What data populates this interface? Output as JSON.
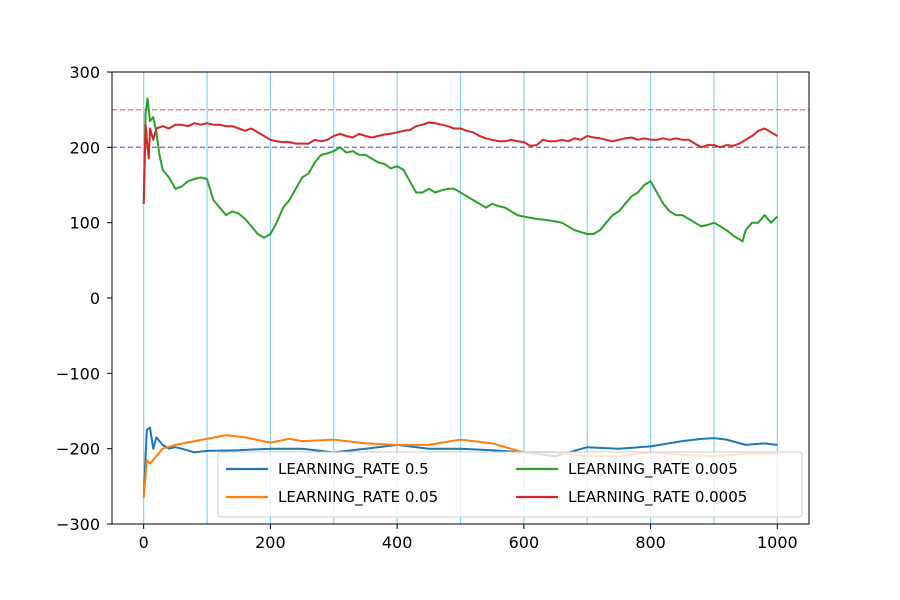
{
  "chart_data": {
    "type": "line",
    "title": "",
    "xlabel": "",
    "ylabel": "",
    "xlim": [
      -50,
      1050
    ],
    "ylim": [
      -300,
      300
    ],
    "x_ticks": [
      0,
      200,
      400,
      600,
      800,
      1000
    ],
    "x_tick_labels": [
      "0",
      "200",
      "400",
      "600",
      "800",
      "1000"
    ],
    "y_ticks": [
      -300,
      -200,
      -100,
      0,
      100,
      200,
      300
    ],
    "y_tick_labels": [
      "−300",
      "−200",
      "−100",
      "0",
      "100",
      "200",
      "300"
    ],
    "grid": false,
    "vertical_markers": {
      "x": [
        0,
        100,
        200,
        300,
        400,
        500,
        600,
        700,
        800,
        900,
        1000
      ],
      "color": "#87d3f8"
    },
    "horizontal_markers": [
      {
        "y": 250,
        "color": "#f08080",
        "style": "dashed"
      },
      {
        "y": 200,
        "color": "#7b7bbd",
        "style": "dashed"
      }
    ],
    "legend": {
      "placement": "lower-right",
      "columns": 2
    },
    "series": [
      {
        "name": "LEARNING_RATE 0.5",
        "color": "#1f77b4",
        "points": [
          [
            0,
            -265
          ],
          [
            5,
            -175
          ],
          [
            10,
            -172
          ],
          [
            15,
            -200
          ],
          [
            20,
            -185
          ],
          [
            30,
            -195
          ],
          [
            40,
            -200
          ],
          [
            50,
            -198
          ],
          [
            60,
            -200
          ],
          [
            80,
            -205
          ],
          [
            100,
            -203
          ],
          [
            150,
            -202
          ],
          [
            200,
            -200
          ],
          [
            250,
            -200
          ],
          [
            300,
            -205
          ],
          [
            350,
            -200
          ],
          [
            400,
            -195
          ],
          [
            450,
            -200
          ],
          [
            500,
            -200
          ],
          [
            550,
            -202
          ],
          [
            600,
            -205
          ],
          [
            650,
            -210
          ],
          [
            700,
            -198
          ],
          [
            750,
            -200
          ],
          [
            800,
            -197
          ],
          [
            850,
            -190
          ],
          [
            880,
            -187
          ],
          [
            900,
            -186
          ],
          [
            920,
            -188
          ],
          [
            950,
            -195
          ],
          [
            980,
            -193
          ],
          [
            1000,
            -195
          ]
        ]
      },
      {
        "name": "LEARNING_RATE 0.05",
        "color": "#ff7f0e",
        "points": [
          [
            0,
            -265
          ],
          [
            5,
            -215
          ],
          [
            10,
            -220
          ],
          [
            20,
            -210
          ],
          [
            30,
            -200
          ],
          [
            50,
            -195
          ],
          [
            80,
            -190
          ],
          [
            100,
            -187
          ],
          [
            130,
            -182
          ],
          [
            160,
            -185
          ],
          [
            200,
            -192
          ],
          [
            230,
            -187
          ],
          [
            250,
            -190
          ],
          [
            300,
            -188
          ],
          [
            350,
            -193
          ],
          [
            400,
            -195
          ],
          [
            450,
            -195
          ],
          [
            500,
            -188
          ],
          [
            550,
            -193
          ],
          [
            600,
            -205
          ],
          [
            650,
            -205
          ],
          [
            700,
            -210
          ],
          [
            750,
            -210
          ],
          [
            800,
            -205
          ],
          [
            850,
            -208
          ],
          [
            900,
            -210
          ],
          [
            950,
            -207
          ],
          [
            1000,
            -207
          ]
        ]
      },
      {
        "name": "LEARNING_RATE 0.005",
        "color": "#2ca02c",
        "points": [
          [
            0,
            125
          ],
          [
            3,
            245
          ],
          [
            6,
            265
          ],
          [
            10,
            235
          ],
          [
            15,
            240
          ],
          [
            20,
            220
          ],
          [
            25,
            190
          ],
          [
            30,
            170
          ],
          [
            40,
            160
          ],
          [
            50,
            145
          ],
          [
            60,
            148
          ],
          [
            70,
            155
          ],
          [
            80,
            158
          ],
          [
            90,
            160
          ],
          [
            100,
            158
          ],
          [
            110,
            130
          ],
          [
            120,
            120
          ],
          [
            130,
            110
          ],
          [
            140,
            115
          ],
          [
            150,
            112
          ],
          [
            160,
            105
          ],
          [
            170,
            95
          ],
          [
            180,
            85
          ],
          [
            190,
            80
          ],
          [
            200,
            85
          ],
          [
            210,
            100
          ],
          [
            220,
            120
          ],
          [
            230,
            130
          ],
          [
            240,
            145
          ],
          [
            250,
            160
          ],
          [
            260,
            165
          ],
          [
            270,
            180
          ],
          [
            280,
            190
          ],
          [
            290,
            192
          ],
          [
            300,
            195
          ],
          [
            310,
            200
          ],
          [
            320,
            193
          ],
          [
            330,
            195
          ],
          [
            340,
            190
          ],
          [
            350,
            190
          ],
          [
            360,
            185
          ],
          [
            370,
            180
          ],
          [
            380,
            178
          ],
          [
            390,
            172
          ],
          [
            400,
            175
          ],
          [
            410,
            170
          ],
          [
            420,
            155
          ],
          [
            430,
            140
          ],
          [
            440,
            140
          ],
          [
            450,
            145
          ],
          [
            460,
            140
          ],
          [
            470,
            143
          ],
          [
            480,
            145
          ],
          [
            490,
            145
          ],
          [
            500,
            140
          ],
          [
            510,
            135
          ],
          [
            520,
            130
          ],
          [
            530,
            125
          ],
          [
            540,
            120
          ],
          [
            550,
            125
          ],
          [
            560,
            122
          ],
          [
            570,
            120
          ],
          [
            580,
            115
          ],
          [
            590,
            110
          ],
          [
            600,
            108
          ],
          [
            620,
            105
          ],
          [
            640,
            103
          ],
          [
            660,
            100
          ],
          [
            680,
            90
          ],
          [
            700,
            85
          ],
          [
            710,
            85
          ],
          [
            720,
            90
          ],
          [
            730,
            100
          ],
          [
            740,
            110
          ],
          [
            750,
            115
          ],
          [
            760,
            125
          ],
          [
            770,
            135
          ],
          [
            780,
            140
          ],
          [
            790,
            150
          ],
          [
            800,
            155
          ],
          [
            810,
            140
          ],
          [
            820,
            125
          ],
          [
            830,
            115
          ],
          [
            840,
            110
          ],
          [
            850,
            110
          ],
          [
            860,
            105
          ],
          [
            870,
            100
          ],
          [
            880,
            95
          ],
          [
            890,
            97
          ],
          [
            900,
            100
          ],
          [
            910,
            95
          ],
          [
            920,
            90
          ],
          [
            930,
            83
          ],
          [
            940,
            78
          ],
          [
            945,
            75
          ],
          [
            950,
            90
          ],
          [
            960,
            100
          ],
          [
            970,
            100
          ],
          [
            980,
            110
          ],
          [
            990,
            100
          ],
          [
            1000,
            108
          ]
        ]
      },
      {
        "name": "LEARNING_RATE 0.0005",
        "color": "#d62728",
        "points": [
          [
            0,
            125
          ],
          [
            3,
            230
          ],
          [
            6,
            200
          ],
          [
            8,
            185
          ],
          [
            10,
            225
          ],
          [
            15,
            210
          ],
          [
            20,
            225
          ],
          [
            30,
            228
          ],
          [
            40,
            225
          ],
          [
            50,
            230
          ],
          [
            60,
            230
          ],
          [
            70,
            228
          ],
          [
            80,
            232
          ],
          [
            90,
            230
          ],
          [
            100,
            232
          ],
          [
            110,
            230
          ],
          [
            120,
            230
          ],
          [
            130,
            228
          ],
          [
            140,
            228
          ],
          [
            150,
            225
          ],
          [
            160,
            222
          ],
          [
            170,
            225
          ],
          [
            180,
            220
          ],
          [
            190,
            215
          ],
          [
            200,
            210
          ],
          [
            210,
            208
          ],
          [
            220,
            207
          ],
          [
            230,
            207
          ],
          [
            240,
            205
          ],
          [
            250,
            205
          ],
          [
            260,
            205
          ],
          [
            270,
            210
          ],
          [
            280,
            208
          ],
          [
            290,
            210
          ],
          [
            300,
            215
          ],
          [
            310,
            218
          ],
          [
            320,
            215
          ],
          [
            330,
            213
          ],
          [
            340,
            218
          ],
          [
            350,
            215
          ],
          [
            360,
            213
          ],
          [
            370,
            215
          ],
          [
            380,
            217
          ],
          [
            390,
            218
          ],
          [
            400,
            220
          ],
          [
            410,
            222
          ],
          [
            420,
            223
          ],
          [
            430,
            228
          ],
          [
            440,
            230
          ],
          [
            450,
            233
          ],
          [
            460,
            232
          ],
          [
            470,
            230
          ],
          [
            480,
            228
          ],
          [
            490,
            225
          ],
          [
            500,
            225
          ],
          [
            510,
            222
          ],
          [
            520,
            220
          ],
          [
            530,
            215
          ],
          [
            540,
            212
          ],
          [
            550,
            210
          ],
          [
            560,
            208
          ],
          [
            570,
            208
          ],
          [
            580,
            210
          ],
          [
            590,
            208
          ],
          [
            600,
            207
          ],
          [
            610,
            202
          ],
          [
            620,
            203
          ],
          [
            630,
            210
          ],
          [
            640,
            208
          ],
          [
            650,
            208
          ],
          [
            660,
            210
          ],
          [
            670,
            208
          ],
          [
            680,
            212
          ],
          [
            690,
            210
          ],
          [
            700,
            215
          ],
          [
            710,
            213
          ],
          [
            720,
            212
          ],
          [
            730,
            210
          ],
          [
            740,
            208
          ],
          [
            750,
            210
          ],
          [
            760,
            212
          ],
          [
            770,
            213
          ],
          [
            780,
            210
          ],
          [
            790,
            212
          ],
          [
            800,
            210
          ],
          [
            810,
            210
          ],
          [
            820,
            212
          ],
          [
            830,
            210
          ],
          [
            840,
            212
          ],
          [
            850,
            210
          ],
          [
            860,
            210
          ],
          [
            870,
            205
          ],
          [
            880,
            200
          ],
          [
            890,
            203
          ],
          [
            900,
            203
          ],
          [
            910,
            200
          ],
          [
            920,
            203
          ],
          [
            930,
            202
          ],
          [
            940,
            205
          ],
          [
            950,
            210
          ],
          [
            960,
            215
          ],
          [
            970,
            222
          ],
          [
            980,
            225
          ],
          [
            990,
            220
          ],
          [
            1000,
            215
          ]
        ]
      }
    ]
  }
}
